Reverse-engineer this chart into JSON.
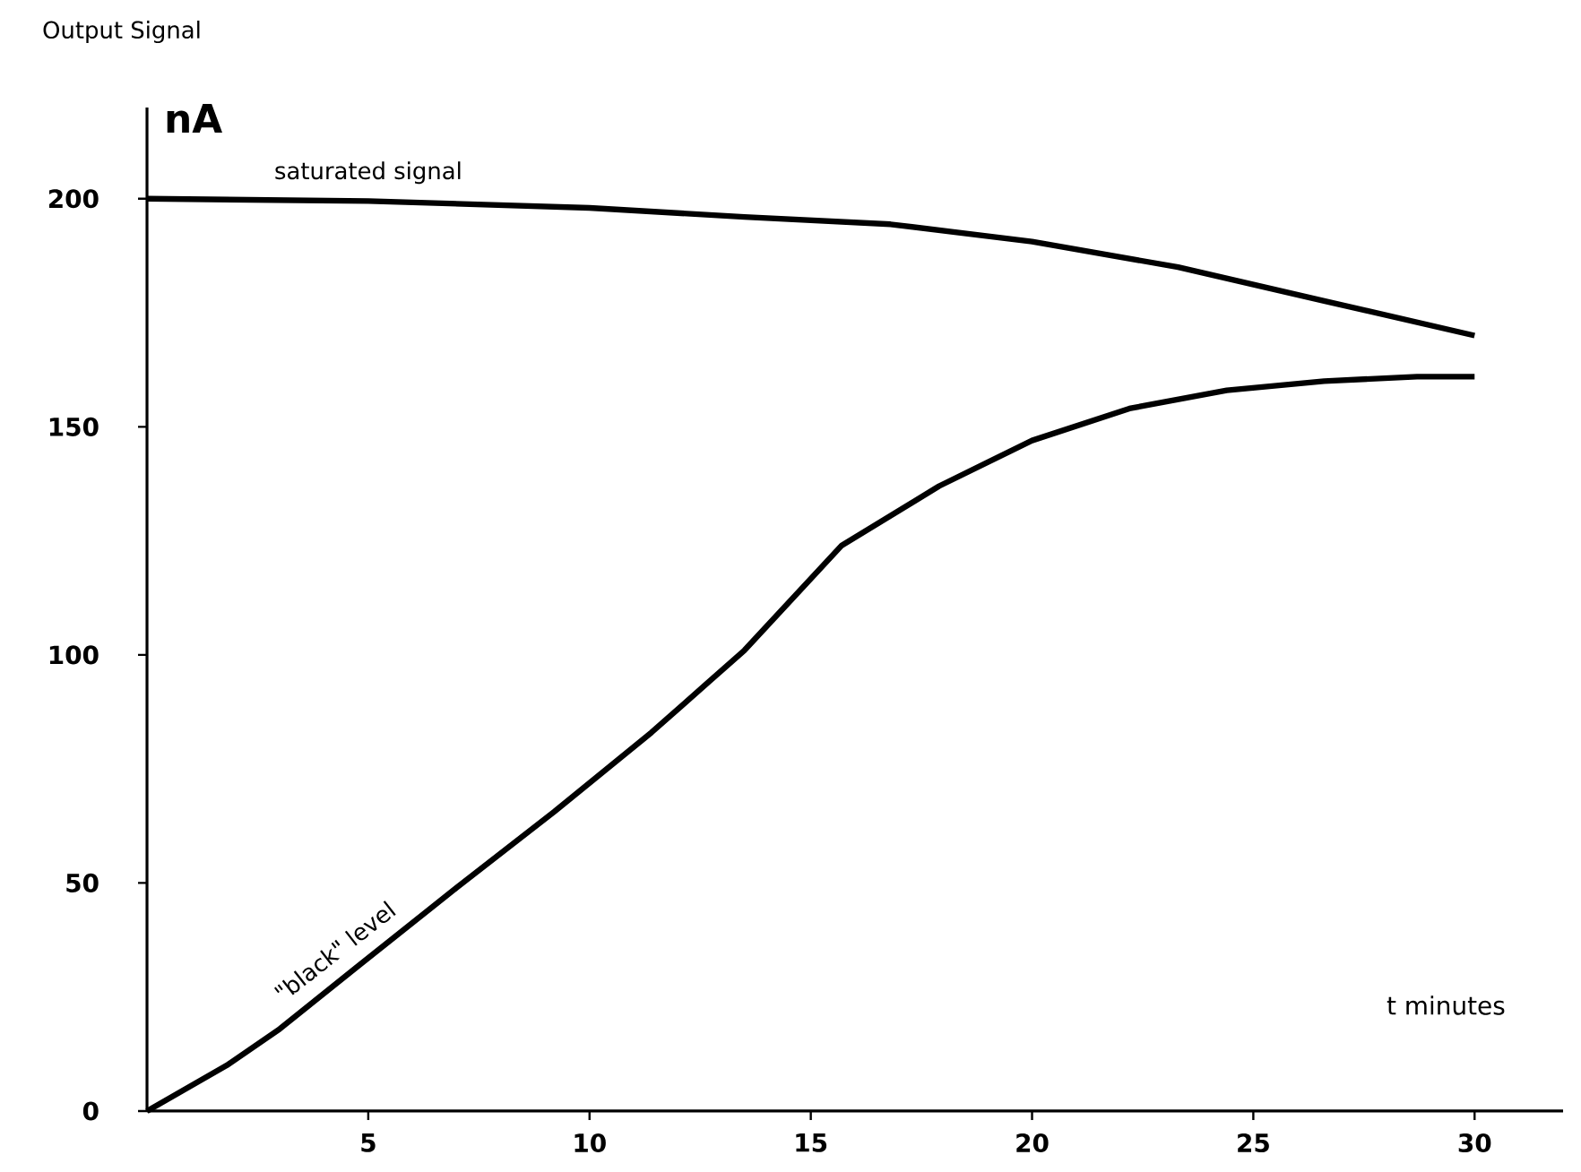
{
  "chart_data": {
    "type": "line",
    "title": "Output Signal",
    "xlabel": "t minutes",
    "ylabel": "nA",
    "xlim": [
      0,
      32
    ],
    "ylim": [
      0,
      220
    ],
    "xticks": [
      5,
      10,
      15,
      20,
      25,
      30
    ],
    "yticks": [
      0,
      50,
      100,
      150,
      200
    ],
    "series": [
      {
        "name": "saturated signal",
        "color": "#000000",
        "x": [
          0,
          5,
          10,
          13.5,
          16.8,
          20,
          23.3,
          26.6,
          30
        ],
        "values": [
          200,
          199.5,
          198,
          196,
          194.4,
          190.6,
          185,
          177.6,
          170
        ]
      },
      {
        "name": "\"black\" level",
        "color": "#000000",
        "x": [
          0,
          1.8,
          3,
          4.8,
          7,
          9.2,
          11.4,
          13.5,
          15.7,
          17.9,
          20,
          22.2,
          24.4,
          26.6,
          28.7,
          30
        ],
        "values": [
          0,
          10,
          18,
          32,
          49,
          65.6,
          83,
          101,
          124,
          137,
          147,
          154,
          158,
          160,
          161,
          161
        ]
      }
    ]
  }
}
